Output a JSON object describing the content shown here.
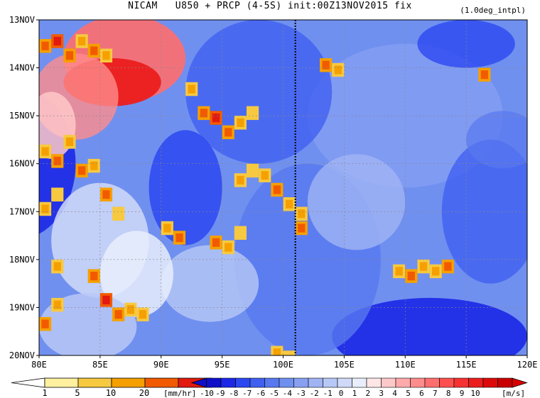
{
  "title": "NICAM   U850 + PRCP (4-5S) init:00Z13NOV2015 fix",
  "subtitle": "(1.0deg_intpl)",
  "chart_data": {
    "type": "heatmap",
    "title": "NICAM   U850 + PRCP (4-5S) init:00Z13NOV2015 fix",
    "subtitle": "(1.0deg_intpl)",
    "x_axis": {
      "range": [
        80,
        120
      ],
      "ticks": [
        80,
        85,
        90,
        95,
        100,
        105,
        110,
        115,
        120
      ],
      "tick_labels": [
        "80E",
        "85E",
        "90E",
        "95E",
        "100E",
        "105E",
        "110E",
        "115E",
        "120E"
      ]
    },
    "y_axis": {
      "range": [
        "13NOV",
        "20NOV"
      ],
      "ticks": [
        13,
        14,
        15,
        16,
        17,
        18,
        19,
        20
      ],
      "tick_labels": [
        "13NOV",
        "14NOV",
        "15NOV",
        "16NOV",
        "17NOV",
        "18NOV",
        "19NOV",
        "20NOV"
      ]
    },
    "grid": true,
    "marker_line_lon": 101,
    "precip_colorbar": {
      "unit": "[mm/hr]",
      "labels": [
        "1",
        "5",
        "10",
        "20"
      ],
      "colors": [
        "#fff0a0",
        "#f7c940",
        "#f5a000",
        "#f25a00",
        "#e21a10"
      ]
    },
    "wind_colorbar": {
      "unit": "[m/s]",
      "labels": [
        "-10",
        "-9",
        "-8",
        "-7",
        "-6",
        "-5",
        "-4",
        "-3",
        "-2",
        "-1",
        "0",
        "1",
        "2",
        "3",
        "4",
        "5",
        "6",
        "7",
        "8",
        "9",
        "10"
      ],
      "colors": [
        "#1010c8",
        "#1c28e6",
        "#2c48f0",
        "#4060f0",
        "#5878f0",
        "#7090f0",
        "#88a0f2",
        "#a0b4f4",
        "#b8c8f6",
        "#d0daf8",
        "#e8eefc",
        "#ffe6e6",
        "#ffc8c8",
        "#ffaaaa",
        "#ff8c8c",
        "#ff6e6e",
        "#ff5050",
        "#f53232",
        "#eb1e1e",
        "#dc0a0a",
        "#c80000"
      ]
    },
    "precip_cells": [
      [
        80,
        13.4,
        3
      ],
      [
        81,
        13.3,
        4
      ],
      [
        82,
        13.6,
        3
      ],
      [
        83,
        13.3,
        2
      ],
      [
        84,
        13.5,
        3
      ],
      [
        85,
        13.6,
        2
      ],
      [
        80,
        15.6,
        2
      ],
      [
        81,
        15.8,
        3
      ],
      [
        82,
        15.4,
        2
      ],
      [
        83,
        16.0,
        3
      ],
      [
        84,
        15.9,
        2
      ],
      [
        80,
        16.8,
        2
      ],
      [
        81,
        16.5,
        1
      ],
      [
        85,
        16.5,
        3
      ],
      [
        86,
        16.9,
        1
      ],
      [
        92,
        14.3,
        2
      ],
      [
        93,
        14.8,
        3
      ],
      [
        94,
        14.9,
        4
      ],
      [
        95,
        15.2,
        3
      ],
      [
        96,
        15.0,
        2
      ],
      [
        97,
        14.8,
        1
      ],
      [
        98,
        16.1,
        2
      ],
      [
        99,
        16.4,
        3
      ],
      [
        100,
        16.7,
        2
      ],
      [
        101,
        17.2,
        3
      ],
      [
        101,
        16.9,
        2
      ],
      [
        94,
        17.5,
        3
      ],
      [
        95,
        17.6,
        2
      ],
      [
        96,
        17.3,
        1
      ],
      [
        90,
        17.2,
        2
      ],
      [
        91,
        17.4,
        3
      ],
      [
        81,
        18.0,
        2
      ],
      [
        81,
        18.8,
        2
      ],
      [
        80,
        19.2,
        3
      ],
      [
        84,
        18.2,
        3
      ],
      [
        85,
        18.7,
        4
      ],
      [
        86,
        19.0,
        3
      ],
      [
        87,
        18.9,
        2
      ],
      [
        88,
        19.0,
        2
      ],
      [
        103,
        13.8,
        3
      ],
      [
        104,
        13.9,
        2
      ],
      [
        109,
        18.1,
        2
      ],
      [
        110,
        18.2,
        3
      ],
      [
        111,
        18.0,
        2
      ],
      [
        112,
        18.1,
        2
      ],
      [
        113,
        18.0,
        3
      ],
      [
        96,
        16.2,
        2
      ],
      [
        97,
        16.0,
        1
      ],
      [
        99,
        19.8,
        2
      ],
      [
        100,
        19.9,
        1
      ],
      [
        116,
        14.0,
        3
      ]
    ]
  }
}
